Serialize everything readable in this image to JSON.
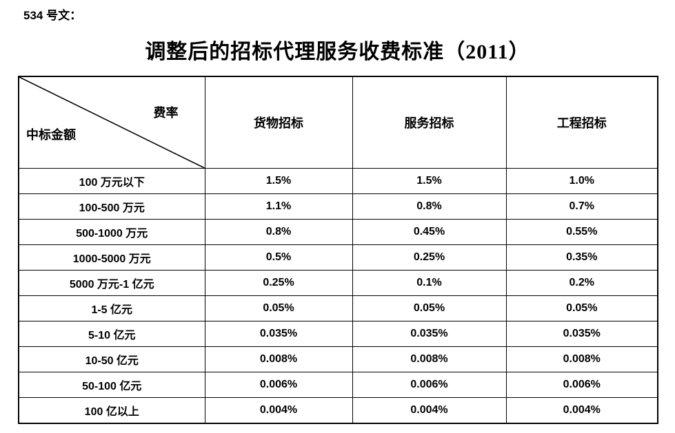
{
  "page": {
    "doc_label": "534 号文：",
    "title": "调整后的招标代理服务收费标准（2011）"
  },
  "table": {
    "corner": {
      "top_label": "费率",
      "bottom_label": "中标金额"
    },
    "columns": [
      "货物招标",
      "服务招标",
      "工程招标"
    ],
    "rows": [
      {
        "amount": "100 万元以下",
        "values": [
          "1.5%",
          "1.5%",
          "1.0%"
        ]
      },
      {
        "amount": "100-500 万元",
        "values": [
          "1.1%",
          "0.8%",
          "0.7%"
        ]
      },
      {
        "amount": "500-1000 万元",
        "values": [
          "0.8%",
          "0.45%",
          "0.55%"
        ]
      },
      {
        "amount": "1000-5000 万元",
        "values": [
          "0.5%",
          "0.25%",
          "0.35%"
        ]
      },
      {
        "amount": "5000 万元-1 亿元",
        "values": [
          "0.25%",
          "0.1%",
          "0.2%"
        ]
      },
      {
        "amount": "1-5 亿元",
        "values": [
          "0.05%",
          "0.05%",
          "0.05%"
        ]
      },
      {
        "amount": "5-10 亿元",
        "values": [
          "0.035%",
          "0.035%",
          "0.035%"
        ]
      },
      {
        "amount": "10-50 亿元",
        "values": [
          "0.008%",
          "0.008%",
          "0.008%"
        ]
      },
      {
        "amount": "50-100 亿元",
        "values": [
          "0.006%",
          "0.006%",
          "0.006%"
        ]
      },
      {
        "amount": "100 亿以上",
        "values": [
          "0.004%",
          "0.004%",
          "0.004%"
        ]
      }
    ],
    "line_color": "#000000"
  }
}
